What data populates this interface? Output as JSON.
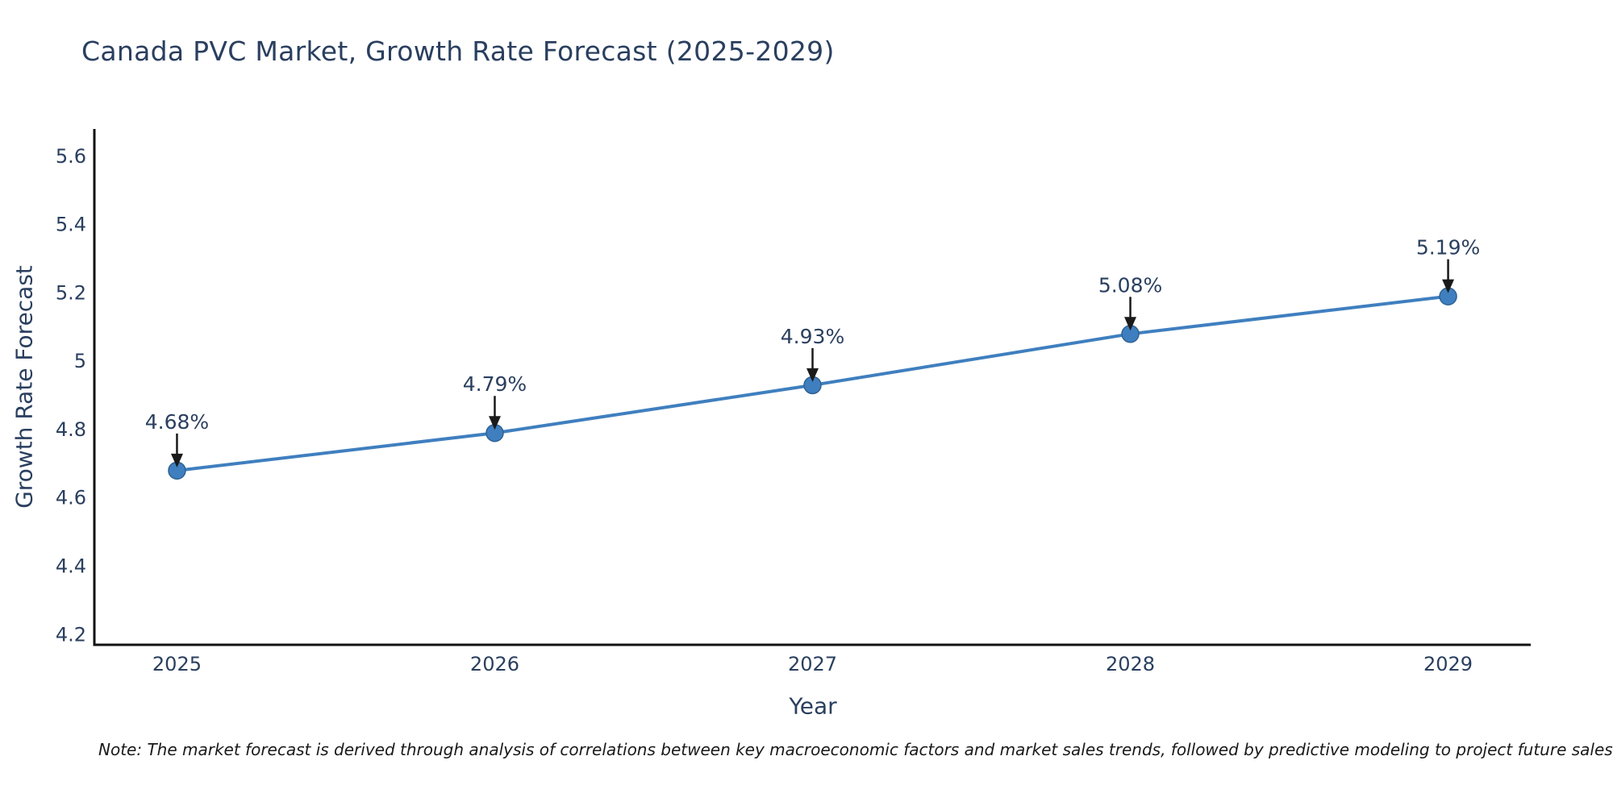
{
  "title": "Canada PVC Market, Growth Rate Forecast (2025-2029)",
  "footnote": "Note: The market forecast is derived through analysis of correlations between key macroeconomic factors and market sales trends, followed by predictive modeling to project future sales",
  "colors": {
    "line": "#3f7fbf",
    "marker_fill": "#3f7fbf",
    "marker_edge": "#2f6293",
    "axis_line": "#111111",
    "tick_text": "#2a3f5f",
    "annotation_text": "#2a3f5f",
    "arrow": "#1a1a1a",
    "title_text": "#2a3f5f",
    "note_text": "#1a1a1a",
    "background": "#ffffff"
  },
  "chart_data": {
    "type": "line",
    "title": "Canada PVC Market, Growth Rate Forecast (2025-2029)",
    "xlabel": "Year",
    "ylabel": "Growth Rate Forecast",
    "x": [
      2025,
      2026,
      2027,
      2028,
      2029
    ],
    "series": [
      {
        "name": "Growth Rate Forecast",
        "values": [
          4.68,
          4.79,
          4.93,
          5.08,
          5.19
        ],
        "point_labels": [
          "4.68%",
          "4.79%",
          "4.93%",
          "5.08%",
          "5.19%"
        ]
      }
    ],
    "xtick_labels": [
      "2025",
      "2026",
      "2027",
      "2028",
      "2029"
    ],
    "yticks": [
      4.2,
      4.4,
      4.6,
      4.8,
      5,
      5.2,
      5.4,
      5.6
    ],
    "ytick_labels": [
      "4.2",
      "4.4",
      "4.6",
      "4.8",
      "5",
      "5.2",
      "5.4",
      "5.6"
    ],
    "xlim": [
      2024.74,
      2029.26
    ],
    "ylim": [
      4.17,
      5.68
    ],
    "grid": false,
    "legend_position": "none",
    "marker": "circle",
    "annotations_have_arrows": true
  }
}
